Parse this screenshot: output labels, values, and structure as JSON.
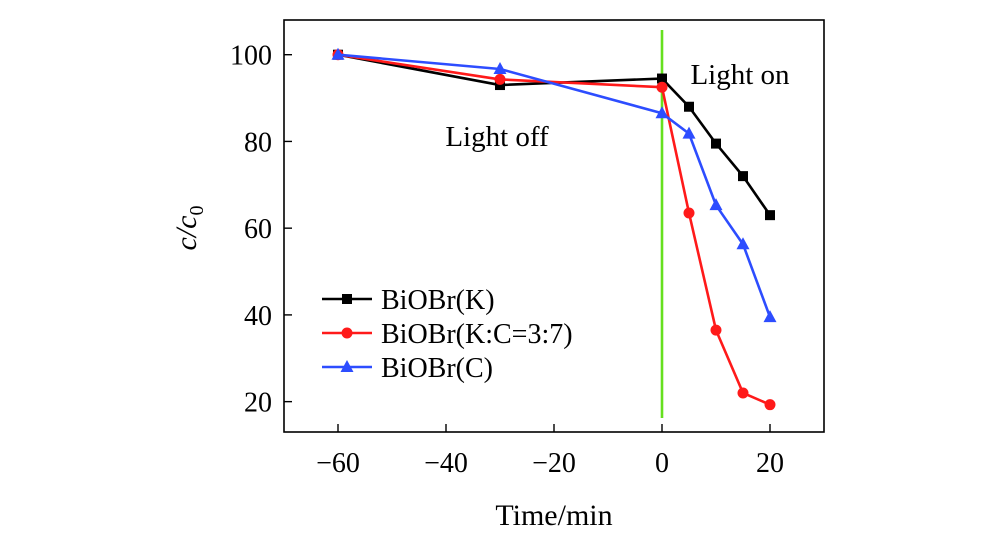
{
  "chart_data": {
    "type": "line",
    "title": "",
    "xlabel": "Time/min",
    "ylabel_main": "c/c",
    "ylabel_sub": "0",
    "xlim": [
      -70,
      30
    ],
    "ylim": [
      13,
      108
    ],
    "xticks": [
      -60,
      -40,
      -20,
      0,
      20
    ],
    "xtick_labels": [
      "−60",
      "−40",
      "−20",
      "0",
      "20"
    ],
    "yticks": [
      20,
      40,
      60,
      80,
      100
    ],
    "ytick_labels": [
      "20",
      "40",
      "60",
      "80",
      "100"
    ],
    "grid": false,
    "legend_position": "bottom-left",
    "annotations": [
      {
        "text": "Light on",
        "x": 15,
        "y": 100
      },
      {
        "text": "Light off",
        "x": -30,
        "y": 82
      }
    ],
    "divider": {
      "x": 0,
      "color": "#66e01e"
    },
    "series": [
      {
        "name": "BiOBr(K)",
        "color": "#000000",
        "marker": "square",
        "x": [
          -60,
          -30,
          0,
          5,
          10,
          15,
          20
        ],
        "y": [
          100,
          93,
          94.5,
          88,
          79.5,
          72,
          63
        ]
      },
      {
        "name": "BiOBr(K:C=3:7)",
        "color": "#ff1a1a",
        "marker": "circle",
        "x": [
          -60,
          -30,
          0,
          5,
          10,
          15,
          20
        ],
        "y": [
          100,
          94.3,
          92.5,
          63.5,
          36.5,
          22,
          19.3
        ]
      },
      {
        "name": "BiOBr(C)",
        "color": "#2d4dff",
        "marker": "triangle",
        "x": [
          -60,
          -30,
          0,
          5,
          10,
          15,
          20
        ],
        "y": [
          100,
          96.7,
          86.5,
          81.8,
          65.3,
          56.3,
          39.5
        ]
      }
    ]
  }
}
